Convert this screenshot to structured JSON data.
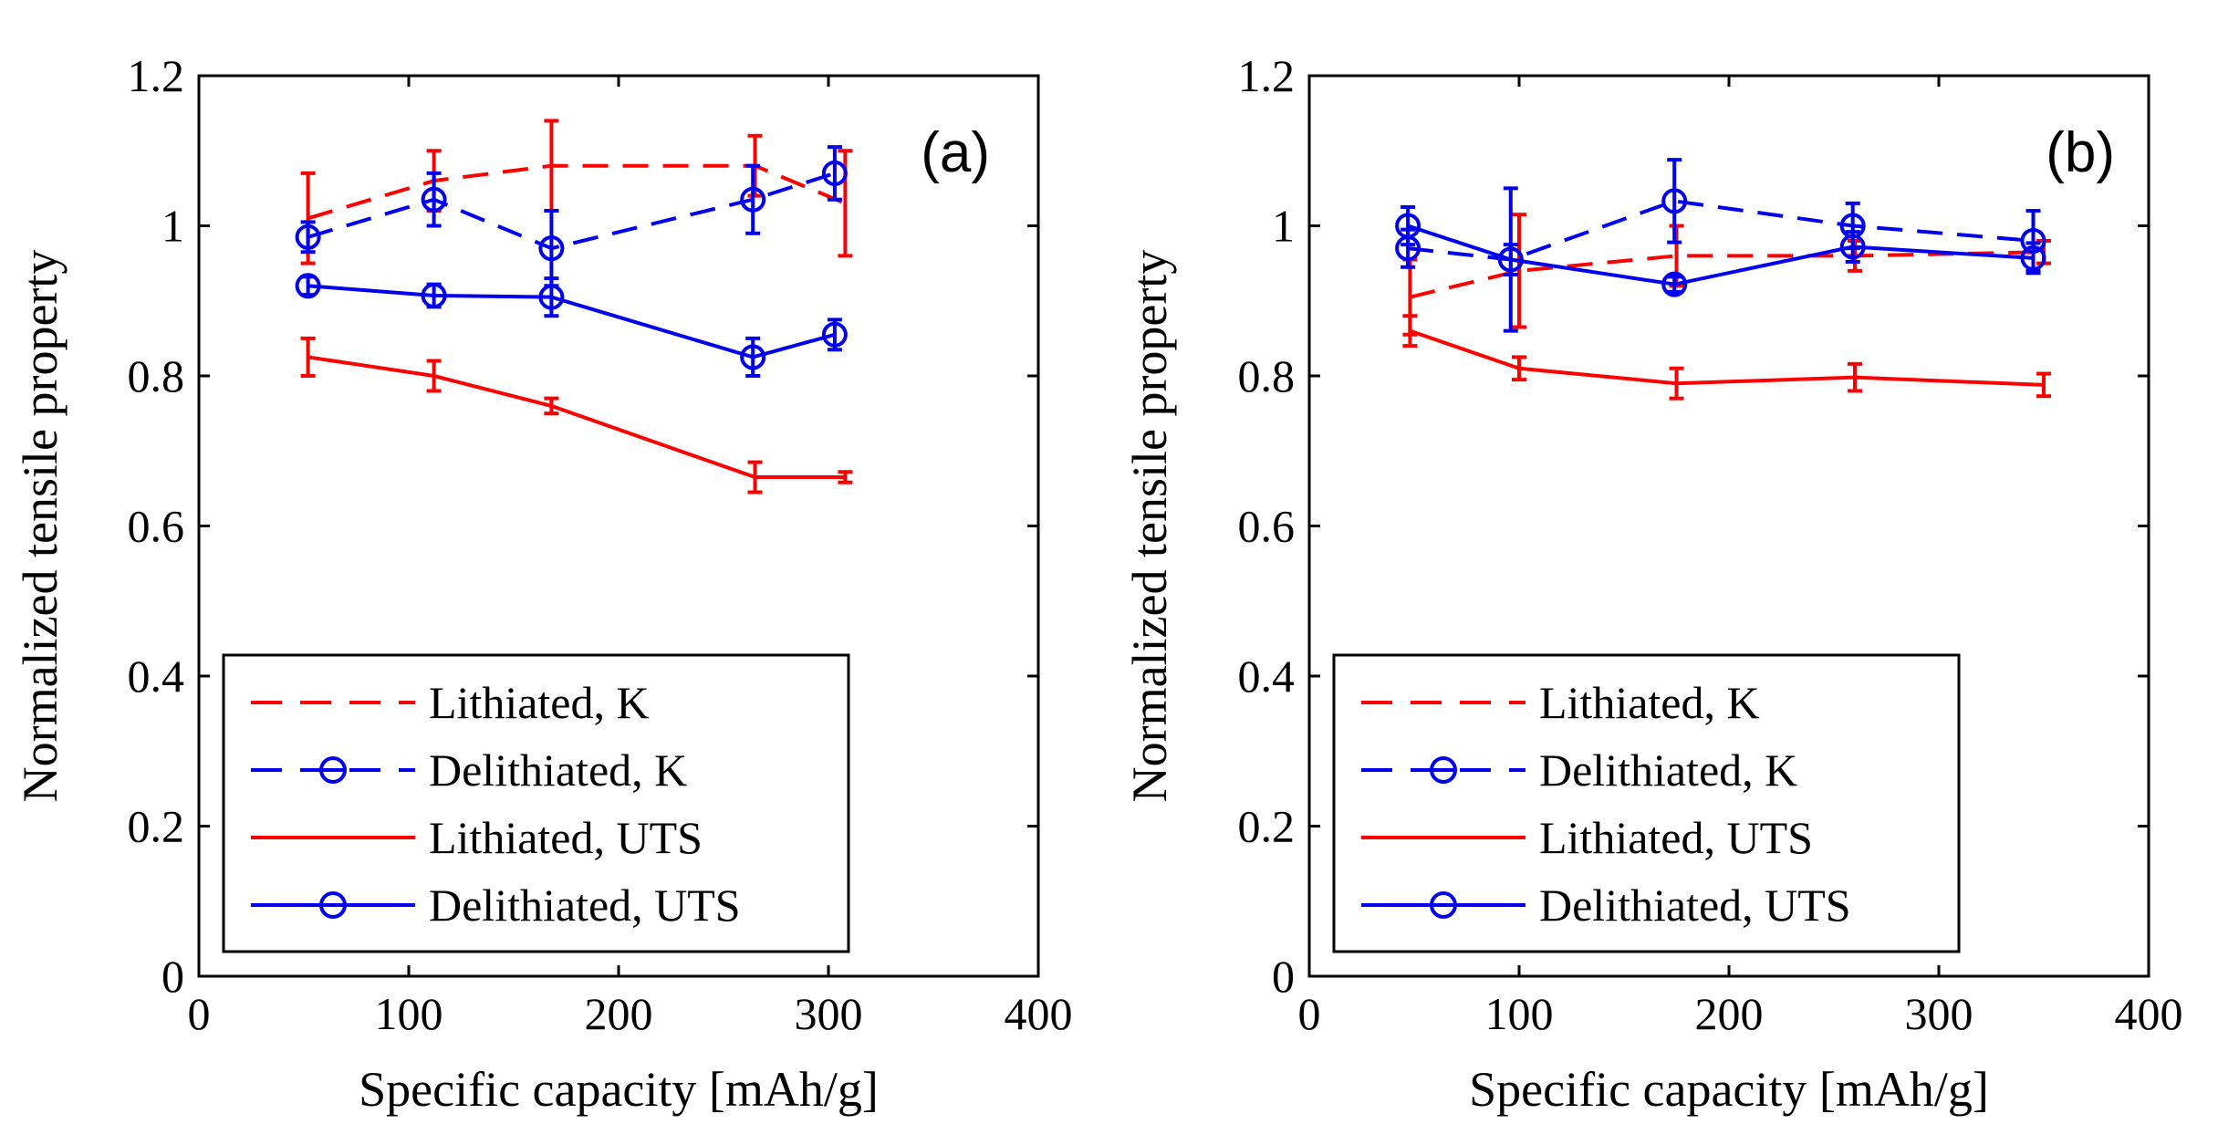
{
  "chart_data": [
    {
      "type": "line",
      "panel_label": "(a)",
      "xlabel": "Specific capacity [mAh/g]",
      "ylabel": "Normalized tensile property",
      "xlim": [
        0,
        400
      ],
      "ylim": [
        0,
        1.2
      ],
      "xticks": [
        0,
        100,
        200,
        300,
        400
      ],
      "yticks": [
        0,
        0.2,
        0.4,
        0.6,
        0.8,
        1,
        1.2
      ],
      "xtick_labels": [
        "0",
        "100",
        "200",
        "300",
        "400"
      ],
      "ytick_labels": [
        "0",
        "0.2",
        "0.4",
        "0.6",
        "0.8",
        "1",
        "1.2"
      ],
      "grid": false,
      "legend_position": "bottom-left",
      "series": [
        {
          "name": "Lithiated, K",
          "color": "#ff0000",
          "dash": true,
          "marker": false,
          "x": [
            52,
            112,
            168,
            265,
            308
          ],
          "y": [
            1.01,
            1.06,
            1.08,
            1.08,
            1.03
          ],
          "err": [
            0.06,
            0.04,
            0.06,
            0.04,
            0.07
          ]
        },
        {
          "name": "Delithiated, K",
          "color": "#0000ee",
          "dash": true,
          "marker": true,
          "x": [
            52,
            112,
            168,
            264,
            303
          ],
          "y": [
            0.985,
            1.035,
            0.97,
            1.035,
            1.07
          ],
          "err": [
            0.02,
            0.035,
            0.05,
            0.045,
            0.035
          ]
        },
        {
          "name": "Lithiated, UTS",
          "color": "#ff0000",
          "dash": false,
          "marker": false,
          "x": [
            52,
            112,
            168,
            265,
            308
          ],
          "y": [
            0.825,
            0.8,
            0.76,
            0.665,
            0.665
          ],
          "err": [
            0.025,
            0.02,
            0.01,
            0.02,
            0.007
          ]
        },
        {
          "name": "Delithiated, UTS",
          "color": "#0000ee",
          "dash": false,
          "marker": true,
          "x": [
            52,
            112,
            168,
            264,
            303
          ],
          "y": [
            0.92,
            0.907,
            0.905,
            0.825,
            0.855
          ],
          "err": [
            0.012,
            0.015,
            0.025,
            0.025,
            0.02
          ]
        }
      ]
    },
    {
      "type": "line",
      "panel_label": "(b)",
      "xlabel": "Specific capacity [mAh/g]",
      "ylabel": "Normalized tensile property",
      "xlim": [
        0,
        400
      ],
      "ylim": [
        0,
        1.2
      ],
      "xticks": [
        0,
        100,
        200,
        300,
        400
      ],
      "yticks": [
        0,
        0.2,
        0.4,
        0.6,
        0.8,
        1,
        1.2
      ],
      "xtick_labels": [
        "0",
        "100",
        "200",
        "300",
        "400"
      ],
      "ytick_labels": [
        "0",
        "0.2",
        "0.4",
        "0.6",
        "0.8",
        "1",
        "1.2"
      ],
      "grid": false,
      "legend_position": "bottom-left",
      "series": [
        {
          "name": "Lithiated, K",
          "color": "#ff0000",
          "dash": true,
          "marker": false,
          "x": [
            48,
            100,
            175,
            260,
            350
          ],
          "y": [
            0.905,
            0.94,
            0.96,
            0.96,
            0.965
          ],
          "err": [
            0.05,
            0.075,
            0.04,
            0.02,
            0.015
          ]
        },
        {
          "name": "Delithiated, K",
          "color": "#0000ee",
          "dash": true,
          "marker": true,
          "x": [
            47,
            96,
            174,
            259,
            345
          ],
          "y": [
            0.97,
            0.955,
            1.033,
            1.0,
            0.98
          ],
          "err": [
            0.025,
            0.095,
            0.055,
            0.03,
            0.04
          ]
        },
        {
          "name": "Lithiated, UTS",
          "color": "#ff0000",
          "dash": false,
          "marker": false,
          "x": [
            48,
            100,
            175,
            260,
            350
          ],
          "y": [
            0.86,
            0.81,
            0.79,
            0.798,
            0.788
          ],
          "err": [
            0.02,
            0.015,
            0.02,
            0.018,
            0.015
          ]
        },
        {
          "name": "Delithiated, UTS",
          "color": "#0000ee",
          "dash": false,
          "marker": true,
          "x": [
            47,
            96,
            174,
            259,
            345
          ],
          "y": [
            1.0,
            0.955,
            0.922,
            0.972,
            0.957
          ],
          "err": [
            0.025,
            0.02,
            0.01,
            0.02,
            0.02
          ]
        }
      ]
    }
  ]
}
